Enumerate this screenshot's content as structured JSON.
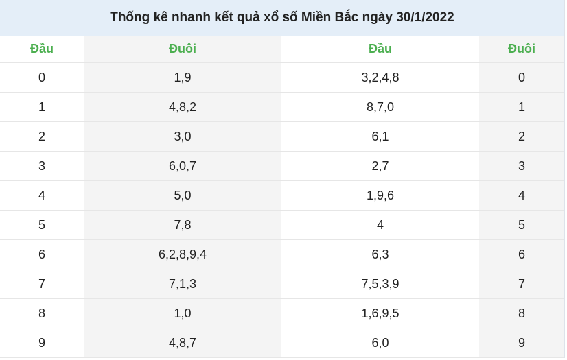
{
  "header": {
    "title": "Thống kê nhanh kết quả xổ số Miền Bắc ngày 30/1/2022"
  },
  "table": {
    "columns": [
      "Đầu",
      "Đuôi",
      "Đầu",
      "Đuôi"
    ],
    "rows": [
      [
        "0",
        "1,9",
        "3,2,4,8",
        "0"
      ],
      [
        "1",
        "4,8,2",
        "8,7,0",
        "1"
      ],
      [
        "2",
        "3,0",
        "6,1",
        "2"
      ],
      [
        "3",
        "6,0,7",
        "2,7",
        "3"
      ],
      [
        "4",
        "5,0",
        "1,9,6",
        "4"
      ],
      [
        "5",
        "7,8",
        "4",
        "5"
      ],
      [
        "6",
        "6,2,8,9,4",
        "6,3",
        "6"
      ],
      [
        "7",
        "7,1,3",
        "7,5,3,9",
        "7"
      ],
      [
        "8",
        "1,0",
        "1,6,9,5",
        "8"
      ],
      [
        "9",
        "4,8,7",
        "6,0",
        "9"
      ]
    ]
  }
}
